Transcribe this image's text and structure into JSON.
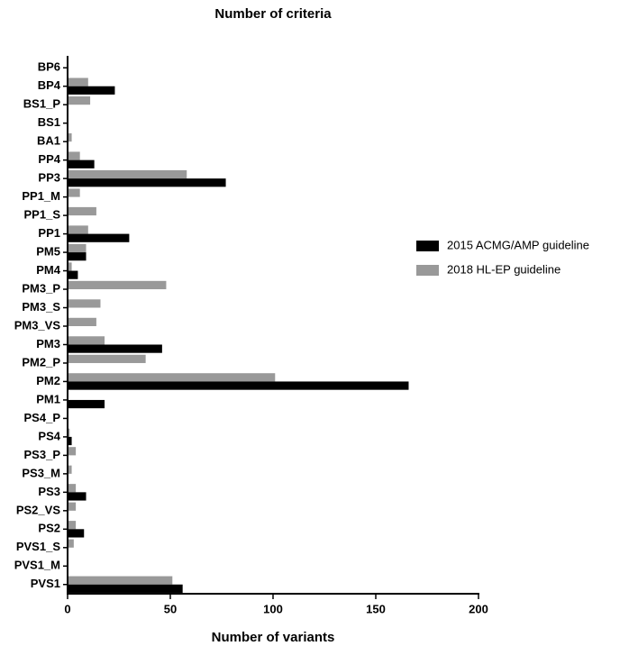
{
  "chart_data": {
    "type": "hbar",
    "title": "Number of criteria",
    "x_label": "Number of variants",
    "categories": [
      "BP6",
      "BP4",
      "BS1_P",
      "BS1",
      "BA1",
      "PP4",
      "PP3",
      "PP1_M",
      "PP1_S",
      "PP1",
      "PM5",
      "PM4",
      "PM3_P",
      "PM3_S",
      "PM3_VS",
      "PM3",
      "PM2_P",
      "PM2",
      "PM1",
      "PS4_P",
      "PS4",
      "PS3_P",
      "PS3_M",
      "PS3",
      "PS2_VS",
      "PS2",
      "PVS1_S",
      "PVS1_M",
      "PVS1"
    ],
    "series": [
      {
        "name": "2015 ACMG/AMP guideline",
        "color": "#000000",
        "values": [
          0,
          23,
          0,
          0,
          0,
          13,
          77,
          0,
          0,
          30,
          9,
          5,
          0,
          0,
          0,
          46,
          0,
          166,
          18,
          0,
          2,
          0,
          0,
          9,
          0,
          8,
          0,
          0,
          56
        ]
      },
      {
        "name": "2018 HL-EP guideline",
        "color": "#999999",
        "values": [
          0,
          10,
          11,
          0,
          2,
          6,
          58,
          6,
          14,
          10,
          9,
          2,
          48,
          16,
          14,
          18,
          38,
          101,
          0,
          0,
          1,
          4,
          2,
          4,
          4,
          4,
          3,
          0,
          51
        ]
      }
    ],
    "xlim": [
      0,
      200
    ],
    "xticks": [
      0,
      50,
      100,
      150,
      200
    ],
    "legend": "right"
  }
}
